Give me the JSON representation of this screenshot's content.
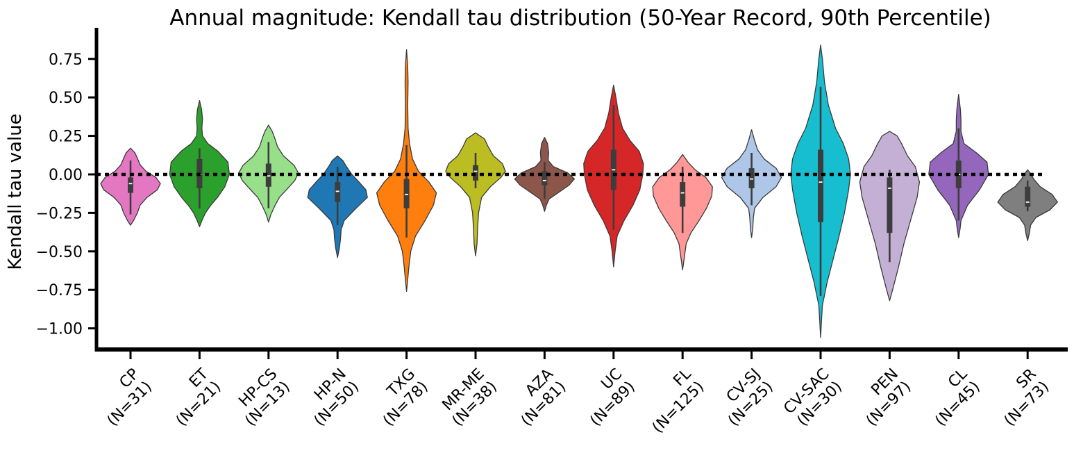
{
  "chart_data": {
    "type": "violin",
    "title": "Annual magnitude: Kendall tau distribution (50-Year Record, 90th Percentile)",
    "xlabel": "",
    "ylabel": "Kendall tau value",
    "ylim": [
      -1.15,
      0.95
    ],
    "yticks": [
      0.75,
      0.5,
      0.25,
      0.0,
      -0.25,
      -0.5,
      -0.75,
      -1.0
    ],
    "ytick_labels": [
      "0.75",
      "0.50",
      "0.25",
      "0.00",
      "−0.25",
      "−0.50",
      "−0.75",
      "−1.00"
    ],
    "reference_line": 0.0,
    "groups": [
      {
        "name": "CP",
        "n_label": "(N=31)",
        "color": "#e377c2",
        "min": -0.33,
        "max": 0.17,
        "q1": -0.12,
        "median": -0.06,
        "q3": -0.02,
        "wlo": -0.26,
        "whi": 0.09,
        "profile": [
          [
            -0.33,
            0.0
          ],
          [
            -0.3,
            0.1
          ],
          [
            -0.25,
            0.23
          ],
          [
            -0.2,
            0.32
          ],
          [
            -0.15,
            0.55
          ],
          [
            -0.1,
            0.9
          ],
          [
            -0.06,
            1.0
          ],
          [
            -0.02,
            0.85
          ],
          [
            0.02,
            0.52
          ],
          [
            0.06,
            0.33
          ],
          [
            0.1,
            0.24
          ],
          [
            0.14,
            0.15
          ],
          [
            0.17,
            0.0
          ]
        ]
      },
      {
        "name": "ET",
        "n_label": "(N=21)",
        "color": "#2ca02c",
        "min": -0.34,
        "max": 0.48,
        "q1": -0.09,
        "median": 0.0,
        "q3": 0.1,
        "wlo": -0.22,
        "whi": 0.17,
        "profile": [
          [
            -0.34,
            0.0
          ],
          [
            -0.3,
            0.08
          ],
          [
            -0.25,
            0.2
          ],
          [
            -0.2,
            0.38
          ],
          [
            -0.15,
            0.6
          ],
          [
            -0.08,
            0.85
          ],
          [
            0.0,
            1.0
          ],
          [
            0.08,
            0.95
          ],
          [
            0.15,
            0.62
          ],
          [
            0.2,
            0.28
          ],
          [
            0.25,
            0.1
          ],
          [
            0.3,
            0.08
          ],
          [
            0.36,
            0.1
          ],
          [
            0.42,
            0.07
          ],
          [
            0.48,
            0.0
          ]
        ]
      },
      {
        "name": "HP-CS",
        "n_label": "(N=13)",
        "color": "#98df8a",
        "min": -0.31,
        "max": 0.32,
        "q1": -0.08,
        "median": -0.01,
        "q3": 0.07,
        "wlo": -0.22,
        "whi": 0.21,
        "profile": [
          [
            -0.31,
            0.0
          ],
          [
            -0.26,
            0.08
          ],
          [
            -0.2,
            0.22
          ],
          [
            -0.15,
            0.36
          ],
          [
            -0.1,
            0.6
          ],
          [
            -0.04,
            0.88
          ],
          [
            0.01,
            1.0
          ],
          [
            0.06,
            0.85
          ],
          [
            0.12,
            0.5
          ],
          [
            0.18,
            0.3
          ],
          [
            0.24,
            0.2
          ],
          [
            0.28,
            0.12
          ],
          [
            0.32,
            0.0
          ]
        ]
      },
      {
        "name": "HP-N",
        "n_label": "(N=50)",
        "color": "#1f77b4",
        "min": -0.54,
        "max": 0.12,
        "q1": -0.18,
        "median": -0.11,
        "q3": -0.05,
        "wlo": -0.33,
        "whi": 0.05,
        "profile": [
          [
            -0.54,
            0.0
          ],
          [
            -0.48,
            0.06
          ],
          [
            -0.42,
            0.1
          ],
          [
            -0.36,
            0.12
          ],
          [
            -0.3,
            0.22
          ],
          [
            -0.22,
            0.62
          ],
          [
            -0.15,
            1.0
          ],
          [
            -0.1,
            0.95
          ],
          [
            -0.05,
            0.72
          ],
          [
            0.0,
            0.48
          ],
          [
            0.05,
            0.3
          ],
          [
            0.09,
            0.18
          ],
          [
            0.12,
            0.0
          ]
        ]
      },
      {
        "name": "TXG",
        "n_label": "(N=78)",
        "color": "#ff7f0e",
        "min": -0.76,
        "max": 0.81,
        "q1": -0.22,
        "median": -0.13,
        "q3": -0.03,
        "wlo": -0.41,
        "whi": 0.19,
        "profile": [
          [
            -0.76,
            0.0
          ],
          [
            -0.7,
            0.03
          ],
          [
            -0.6,
            0.08
          ],
          [
            -0.5,
            0.14
          ],
          [
            -0.4,
            0.3
          ],
          [
            -0.3,
            0.62
          ],
          [
            -0.2,
            0.9
          ],
          [
            -0.12,
            1.0
          ],
          [
            -0.05,
            0.75
          ],
          [
            0.02,
            0.4
          ],
          [
            0.1,
            0.2
          ],
          [
            0.2,
            0.1
          ],
          [
            0.3,
            0.05
          ],
          [
            0.45,
            0.04
          ],
          [
            0.6,
            0.05
          ],
          [
            0.7,
            0.04
          ],
          [
            0.81,
            0.0
          ]
        ]
      },
      {
        "name": "MR-ME",
        "n_label": "(N=38)",
        "color": "#bcbd22",
        "min": -0.53,
        "max": 0.27,
        "q1": -0.04,
        "median": 0.02,
        "q3": 0.06,
        "wlo": -0.09,
        "whi": 0.14,
        "profile": [
          [
            -0.53,
            0.0
          ],
          [
            -0.45,
            0.05
          ],
          [
            -0.35,
            0.07
          ],
          [
            -0.25,
            0.1
          ],
          [
            -0.15,
            0.2
          ],
          [
            -0.08,
            0.5
          ],
          [
            -0.02,
            0.85
          ],
          [
            0.02,
            1.0
          ],
          [
            0.07,
            0.9
          ],
          [
            0.12,
            0.6
          ],
          [
            0.18,
            0.42
          ],
          [
            0.23,
            0.3
          ],
          [
            0.27,
            0.0
          ]
        ]
      },
      {
        "name": "AZA",
        "n_label": "(N=81)",
        "color": "#8c564b",
        "min": -0.24,
        "max": 0.24,
        "q1": -0.07,
        "median": -0.04,
        "q3": 0.02,
        "wlo": -0.16,
        "whi": 0.08,
        "profile": [
          [
            -0.24,
            0.0
          ],
          [
            -0.2,
            0.06
          ],
          [
            -0.16,
            0.15
          ],
          [
            -0.12,
            0.45
          ],
          [
            -0.07,
            0.82
          ],
          [
            -0.03,
            1.0
          ],
          [
            0.01,
            0.78
          ],
          [
            0.05,
            0.3
          ],
          [
            0.09,
            0.12
          ],
          [
            0.14,
            0.14
          ],
          [
            0.2,
            0.1
          ],
          [
            0.24,
            0.0
          ]
        ]
      },
      {
        "name": "UC",
        "n_label": "(N=89)",
        "color": "#d62728",
        "min": -0.6,
        "max": 0.58,
        "q1": -0.1,
        "median": 0.03,
        "q3": 0.16,
        "wlo": -0.36,
        "whi": 0.45,
        "profile": [
          [
            -0.6,
            0.0
          ],
          [
            -0.5,
            0.05
          ],
          [
            -0.4,
            0.12
          ],
          [
            -0.3,
            0.35
          ],
          [
            -0.2,
            0.65
          ],
          [
            -0.1,
            0.88
          ],
          [
            0.0,
            0.98
          ],
          [
            0.07,
            1.0
          ],
          [
            0.15,
            0.86
          ],
          [
            0.22,
            0.55
          ],
          [
            0.3,
            0.3
          ],
          [
            0.4,
            0.16
          ],
          [
            0.5,
            0.08
          ],
          [
            0.58,
            0.0
          ]
        ]
      },
      {
        "name": "FL",
        "n_label": "(N=125)",
        "color": "#ff9896",
        "min": -0.62,
        "max": 0.13,
        "q1": -0.21,
        "median": -0.12,
        "q3": -0.05,
        "wlo": -0.38,
        "whi": 0.05,
        "profile": [
          [
            -0.62,
            0.0
          ],
          [
            -0.55,
            0.05
          ],
          [
            -0.45,
            0.12
          ],
          [
            -0.38,
            0.28
          ],
          [
            -0.3,
            0.55
          ],
          [
            -0.22,
            0.8
          ],
          [
            -0.14,
            0.98
          ],
          [
            -0.08,
            1.0
          ],
          [
            -0.02,
            0.78
          ],
          [
            0.03,
            0.42
          ],
          [
            0.08,
            0.18
          ],
          [
            0.13,
            0.0
          ]
        ]
      },
      {
        "name": "CV-SJ",
        "n_label": "(N=25)",
        "color": "#aec7e8",
        "min": -0.41,
        "max": 0.29,
        "q1": -0.09,
        "median": -0.03,
        "q3": 0.04,
        "wlo": -0.2,
        "whi": 0.14,
        "profile": [
          [
            -0.41,
            0.0
          ],
          [
            -0.35,
            0.04
          ],
          [
            -0.28,
            0.06
          ],
          [
            -0.22,
            0.1
          ],
          [
            -0.15,
            0.38
          ],
          [
            -0.08,
            0.82
          ],
          [
            -0.02,
            1.0
          ],
          [
            0.04,
            0.82
          ],
          [
            0.1,
            0.42
          ],
          [
            0.16,
            0.2
          ],
          [
            0.22,
            0.1
          ],
          [
            0.29,
            0.0
          ]
        ]
      },
      {
        "name": "CV-SAC",
        "n_label": "(N=30)",
        "color": "#17becf",
        "min": -1.06,
        "max": 0.84,
        "q1": -0.31,
        "median": -0.05,
        "q3": 0.16,
        "wlo": -0.79,
        "whi": 0.57,
        "profile": [
          [
            -1.06,
            0.0
          ],
          [
            -0.95,
            0.03
          ],
          [
            -0.85,
            0.06
          ],
          [
            -0.7,
            0.22
          ],
          [
            -0.55,
            0.42
          ],
          [
            -0.4,
            0.62
          ],
          [
            -0.25,
            0.8
          ],
          [
            -0.1,
            0.94
          ],
          [
            0.0,
            1.0
          ],
          [
            0.1,
            0.94
          ],
          [
            0.2,
            0.76
          ],
          [
            0.3,
            0.5
          ],
          [
            0.45,
            0.26
          ],
          [
            0.6,
            0.13
          ],
          [
            0.75,
            0.06
          ],
          [
            0.84,
            0.0
          ]
        ]
      },
      {
        "name": "PEN",
        "n_label": "(N=97)",
        "color": "#c5b0d5",
        "min": -0.82,
        "max": 0.28,
        "q1": -0.38,
        "median": -0.09,
        "q3": -0.02,
        "wlo": -0.57,
        "whi": 0.03,
        "profile": [
          [
            -0.82,
            0.0
          ],
          [
            -0.75,
            0.1
          ],
          [
            -0.6,
            0.3
          ],
          [
            -0.45,
            0.48
          ],
          [
            -0.3,
            0.7
          ],
          [
            -0.15,
            0.92
          ],
          [
            -0.05,
            1.0
          ],
          [
            0.05,
            0.86
          ],
          [
            0.12,
            0.6
          ],
          [
            0.2,
            0.4
          ],
          [
            0.25,
            0.25
          ],
          [
            0.28,
            0.0
          ]
        ]
      },
      {
        "name": "CL",
        "n_label": "(N=45)",
        "color": "#9467bd",
        "min": -0.41,
        "max": 0.52,
        "q1": -0.09,
        "median": 0.0,
        "q3": 0.09,
        "wlo": -0.3,
        "whi": 0.3,
        "profile": [
          [
            -0.41,
            0.0
          ],
          [
            -0.35,
            0.05
          ],
          [
            -0.3,
            0.08
          ],
          [
            -0.2,
            0.3
          ],
          [
            -0.1,
            0.7
          ],
          [
            0.0,
            1.0
          ],
          [
            0.08,
            0.95
          ],
          [
            0.14,
            0.6
          ],
          [
            0.2,
            0.18
          ],
          [
            0.28,
            0.08
          ],
          [
            0.35,
            0.08
          ],
          [
            0.42,
            0.06
          ],
          [
            0.52,
            0.0
          ]
        ]
      },
      {
        "name": "SR",
        "n_label": "(N=73)",
        "color": "#7f7f7f",
        "min": -0.43,
        "max": 0.03,
        "q1": -0.21,
        "median": -0.18,
        "q3": -0.08,
        "wlo": -0.24,
        "whi": -0.04,
        "profile": [
          [
            -0.43,
            0.0
          ],
          [
            -0.38,
            0.06
          ],
          [
            -0.33,
            0.1
          ],
          [
            -0.28,
            0.28
          ],
          [
            -0.23,
            0.75
          ],
          [
            -0.18,
            1.0
          ],
          [
            -0.13,
            0.82
          ],
          [
            -0.08,
            0.42
          ],
          [
            -0.03,
            0.2
          ],
          [
            0.0,
            0.12
          ],
          [
            0.03,
            0.0
          ]
        ]
      }
    ]
  }
}
